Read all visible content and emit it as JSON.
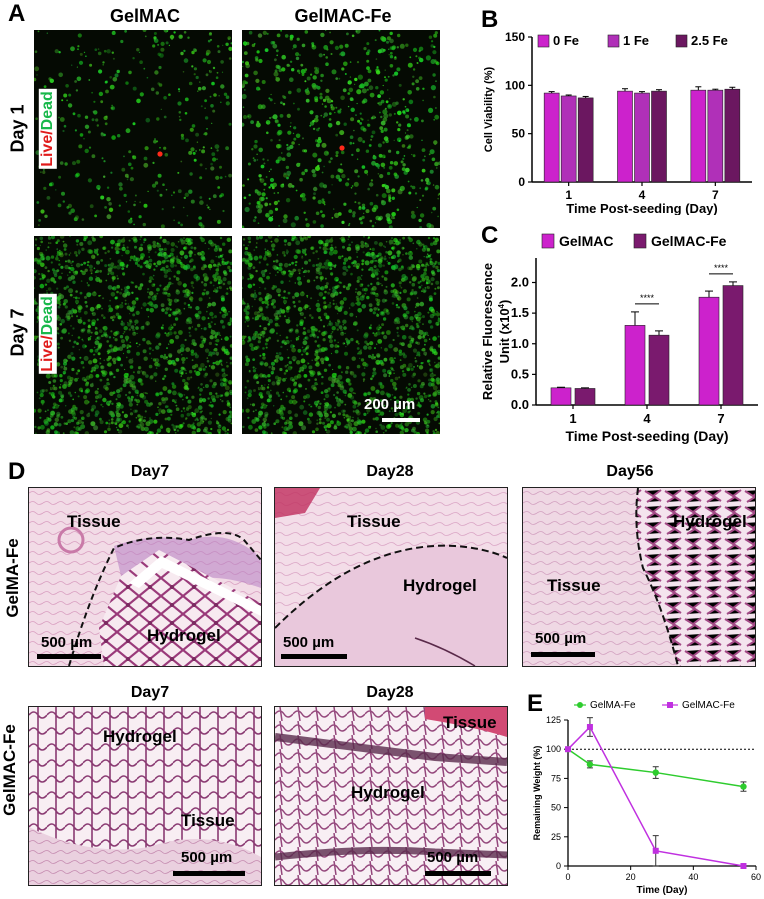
{
  "panel_a": {
    "letter": "A",
    "col_headers": [
      "GelMAC",
      "GelMAC-Fe"
    ],
    "row_headers": [
      "Day 1",
      "Day 7"
    ],
    "stain_live": "Live",
    "stain_slash": "/",
    "stain_dead": "Dead",
    "scale_bar": "200 µm"
  },
  "panel_b": {
    "letter": "B",
    "chart_data": {
      "type": "bar",
      "categories": [
        "1",
        "4",
        "7"
      ],
      "series": [
        {
          "name": "0 Fe",
          "values": [
            92,
            94,
            95
          ],
          "errors": [
            1.5,
            2.5,
            3.5
          ],
          "color": "#cc22cc"
        },
        {
          "name": "1 Fe",
          "values": [
            89,
            92,
            95
          ],
          "errors": [
            1,
            1.5,
            1
          ],
          "color": "#b030b8"
        },
        {
          "name": "2.5 Fe",
          "values": [
            87,
            94,
            96
          ],
          "errors": [
            1.5,
            1.5,
            2
          ],
          "color": "#6b1760"
        }
      ],
      "xlabel": "Time Post-seeding (Day)",
      "ylabel": "Cell Viability (%)",
      "ylim": [
        0,
        150
      ],
      "yticks": [
        "0",
        "50",
        "100",
        "150"
      ],
      "legend_position": "top"
    }
  },
  "panel_c": {
    "letter": "C",
    "chart_data": {
      "type": "bar",
      "categories": [
        "1",
        "4",
        "7"
      ],
      "series": [
        {
          "name": "GelMAC",
          "values": [
            0.28,
            1.3,
            1.76
          ],
          "errors": [
            0.01,
            0.22,
            0.1
          ],
          "color": "#cc22cc"
        },
        {
          "name": "GelMAC-Fe",
          "values": [
            0.27,
            1.14,
            1.95
          ],
          "errors": [
            0.01,
            0.07,
            0.06
          ],
          "color": "#7a1a6e"
        }
      ],
      "xlabel": "Time Post-seeding (Day)",
      "ylabel_line1": "Relative Fluorescence",
      "ylabel_line2": "Unit (x10",
      "ylabel_sup": "4",
      "ylabel_end": ")",
      "ylim": [
        0,
        2.4
      ],
      "yticks": [
        "0.0",
        "0.5",
        "1.0",
        "1.5",
        "2.0"
      ],
      "significance": [
        "****",
        "****"
      ],
      "legend_position": "top"
    }
  },
  "panel_d": {
    "letter": "D",
    "row_headers": [
      "GelMA-Fe",
      "GelMAC-Fe"
    ],
    "titles": [
      "Day7",
      "Day28",
      "Day56",
      "Day7",
      "Day28"
    ],
    "tissue": "Tissue",
    "hydrogel": "Hydrogel",
    "scale_bar": "500 µm"
  },
  "panel_e": {
    "letter": "E",
    "chart_data": {
      "type": "line",
      "series": [
        {
          "name": "GelMA-Fe",
          "x": [
            0,
            7,
            28,
            56
          ],
          "y": [
            100,
            87,
            80,
            68
          ],
          "errors": [
            0,
            3,
            5,
            4
          ],
          "color": "#2ecc2e"
        },
        {
          "name": "GelMAC-Fe",
          "x": [
            0,
            7,
            28,
            56
          ],
          "y": [
            100,
            119,
            13,
            0
          ],
          "errors": [
            0,
            8,
            13,
            0
          ],
          "color": "#c030e0"
        }
      ],
      "xlabel": "Time (Day)",
      "ylabel": "Remaining Weight (%)",
      "xlim": [
        0,
        60
      ],
      "ylim": [
        0,
        125
      ],
      "xticks": [
        "0",
        "20",
        "40",
        "60"
      ],
      "yticks": [
        "0",
        "25",
        "50",
        "75",
        "100",
        "125"
      ],
      "reference_line": 100,
      "legend_position": "top"
    }
  }
}
